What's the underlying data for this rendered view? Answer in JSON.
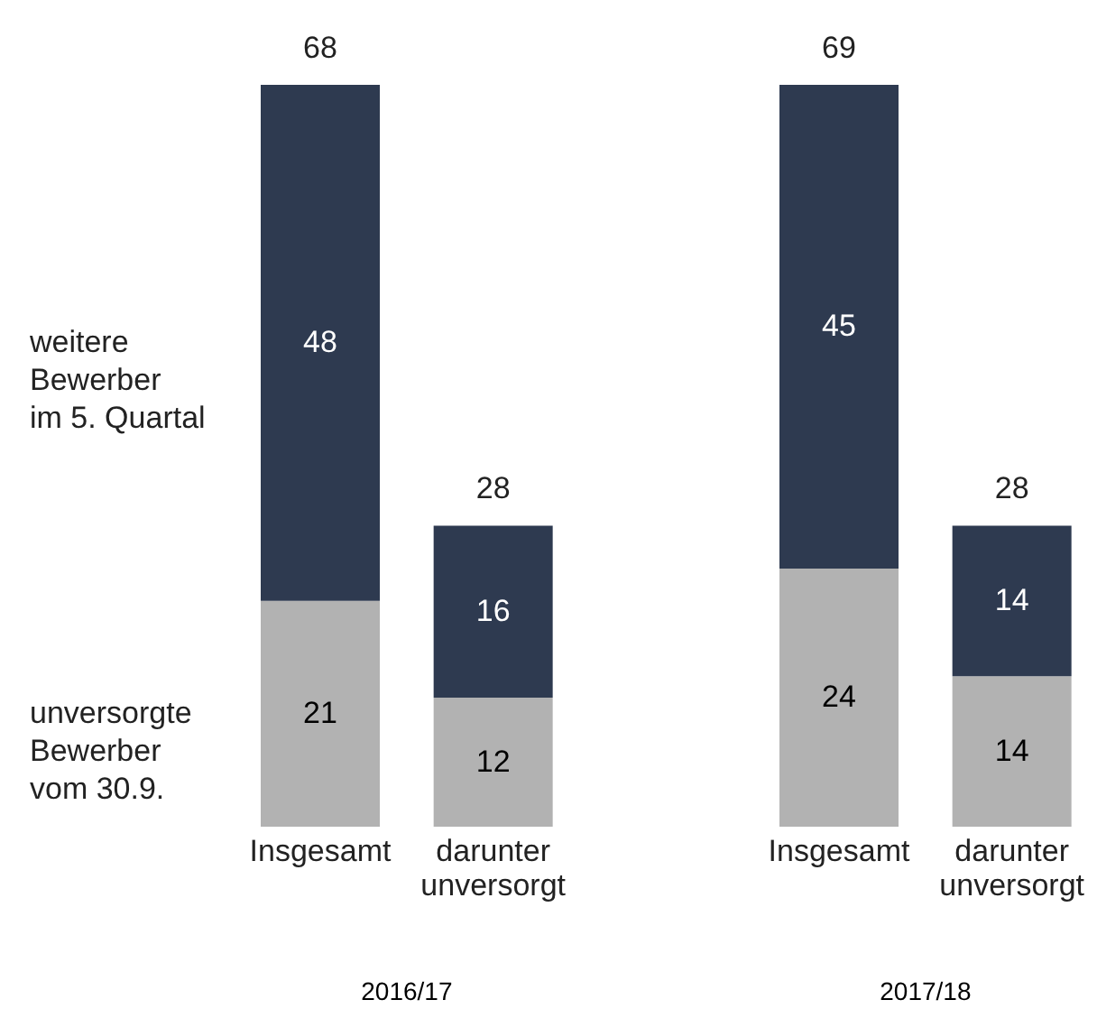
{
  "chart_data": {
    "type": "bar",
    "stacked": true,
    "categories": [
      "Insgesamt",
      "darunter unversorgt",
      "Insgesamt",
      "darunter unversorgt"
    ],
    "series": [
      {
        "name": "unversorgte\nBewerber\nvom 30.9.",
        "color": "#b2b2b2",
        "values": [
          21,
          12,
          24,
          14
        ]
      },
      {
        "name": "weitere\nBewerber\nim 5. Quartal",
        "color": "#2e3a50",
        "values": [
          48,
          16,
          45,
          14
        ]
      }
    ],
    "data_labels": true,
    "totals": [
      "68",
      "28",
      "69",
      "28"
    ],
    "annotations": [
      "2016/17",
      "2017/18"
    ],
    "legend": "left"
  }
}
